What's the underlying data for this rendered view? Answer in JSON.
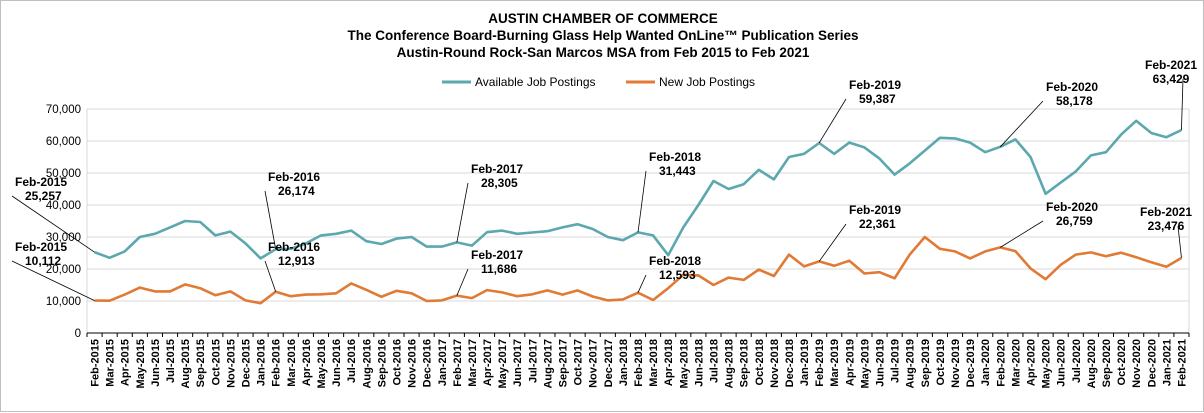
{
  "chart_data": {
    "type": "line",
    "title": [
      "AUSTIN CHAMBER OF COMMERCE",
      "The Conference Board-Burning Glass Help Wanted OnLine™ Publication Series",
      "Austin-Round Rock-San Marcos MSA from Feb 2015 to Feb 2021"
    ],
    "ylim": [
      0,
      70000
    ],
    "yticks": [
      "0",
      "10,000",
      "20,000",
      "30,000",
      "40,000",
      "50,000",
      "60,000",
      "70,000"
    ],
    "grid": "horizontal",
    "legend_position": "top-center",
    "categories": [
      "Feb-2015",
      "Mar-2015",
      "Apr-2015",
      "May-2015",
      "Jun-2015",
      "Jul-2015",
      "Aug-2015",
      "Sep-2015",
      "Oct-2015",
      "Nov-2015",
      "Dec-2015",
      "Jan-2016",
      "Feb-2016",
      "Mar-2016",
      "Apr-2016",
      "May-2016",
      "Jun-2016",
      "Jul-2016",
      "Aug-2016",
      "Sep-2016",
      "Oct-2016",
      "Nov-2016",
      "Dec-2016",
      "Jan-2017",
      "Feb-2017",
      "Mar-2017",
      "Apr-2017",
      "May-2017",
      "Jun-2017",
      "Jul-2017",
      "Aug-2017",
      "Sep-2017",
      "Oct-2017",
      "Nov-2017",
      "Dec-2017",
      "Jan-2018",
      "Feb-2018",
      "Mar-2018",
      "Apr-2018",
      "May-2018",
      "Jun-2018",
      "Jul-2018",
      "Aug-2018",
      "Sep-2018",
      "Oct-2018",
      "Nov-2018",
      "Dec-2018",
      "Jan-2019",
      "Feb-2019",
      "Mar-2019",
      "Apr-2019",
      "May-2019",
      "Jun-2019",
      "Jul-2019",
      "Aug-2019",
      "Sep-2019",
      "Oct-2019",
      "Nov-2019",
      "Dec-2019",
      "Jan-2020",
      "Feb-2020",
      "Mar-2020",
      "Apr-2020",
      "May-2020",
      "Jun-2020",
      "Jul-2020",
      "Aug-2020",
      "Sep-2020",
      "Oct-2020",
      "Nov-2020",
      "Dec-2020",
      "Jan-2021",
      "Feb-2021"
    ],
    "series": [
      {
        "name": "Available Job Postings",
        "color": "#5ba8ae",
        "values": [
          25257,
          23500,
          25500,
          30000,
          31000,
          33000,
          35000,
          34700,
          30500,
          31700,
          28000,
          23300,
          26174,
          26300,
          28000,
          30500,
          31000,
          32000,
          28700,
          27800,
          29500,
          30000,
          27000,
          27000,
          28305,
          27300,
          31500,
          32000,
          31000,
          31400,
          31800,
          33000,
          34000,
          32500,
          30000,
          29000,
          31443,
          30500,
          24300,
          33000,
          40000,
          47500,
          45000,
          46500,
          51000,
          48000,
          55000,
          56000,
          59387,
          56000,
          59500,
          58000,
          54500,
          49500,
          53000,
          57000,
          61000,
          60800,
          59500,
          56500,
          58178,
          60500,
          55000,
          43500,
          47000,
          50500,
          55500,
          56500,
          62000,
          66300,
          62500,
          61200,
          63429
        ]
      },
      {
        "name": "New Job Postings",
        "color": "#e07a35",
        "values": [
          10112,
          10100,
          12000,
          14200,
          13000,
          13000,
          15200,
          14000,
          11800,
          13000,
          10200,
          9300,
          12913,
          11500,
          12000,
          12100,
          12400,
          15500,
          13500,
          11300,
          13200,
          12400,
          10000,
          10200,
          11686,
          10900,
          13400,
          12700,
          11500,
          12100,
          13300,
          12000,
          13300,
          11400,
          10200,
          10500,
          12593,
          10300,
          14000,
          18200,
          18000,
          15000,
          17300,
          16600,
          19800,
          17800,
          24500,
          20800,
          22361,
          21000,
          22600,
          18600,
          19000,
          17100,
          24500,
          30000,
          26300,
          25500,
          23300,
          25500,
          26759,
          25600,
          20200,
          16800,
          21300,
          24500,
          25200,
          24000,
          25100,
          23700,
          22100,
          20700,
          23476
        ]
      }
    ],
    "annotations": [
      {
        "series": 0,
        "index": 0,
        "label": "Feb-2015",
        "value": "25,257"
      },
      {
        "series": 0,
        "index": 12,
        "label": "Feb-2016",
        "value": "26,174"
      },
      {
        "series": 0,
        "index": 24,
        "label": "Feb-2017",
        "value": "28,305"
      },
      {
        "series": 0,
        "index": 36,
        "label": "Feb-2018",
        "value": "31,443"
      },
      {
        "series": 0,
        "index": 48,
        "label": "Feb-2019",
        "value": "59,387"
      },
      {
        "series": 0,
        "index": 60,
        "label": "Feb-2020",
        "value": "58,178"
      },
      {
        "series": 0,
        "index": 72,
        "label": "Feb-2021",
        "value": "63,429"
      },
      {
        "series": 1,
        "index": 0,
        "label": "Feb-2015",
        "value": "10,112"
      },
      {
        "series": 1,
        "index": 12,
        "label": "Feb-2016",
        "value": "12,913"
      },
      {
        "series": 1,
        "index": 24,
        "label": "Feb-2017",
        "value": "11,686"
      },
      {
        "series": 1,
        "index": 36,
        "label": "Feb-2018",
        "value": "12,593"
      },
      {
        "series": 1,
        "index": 48,
        "label": "Feb-2019",
        "value": "22,361"
      },
      {
        "series": 1,
        "index": 60,
        "label": "Feb-2020",
        "value": "26,759"
      },
      {
        "series": 1,
        "index": 72,
        "label": "Feb-2021",
        "value": "23,476"
      }
    ]
  }
}
